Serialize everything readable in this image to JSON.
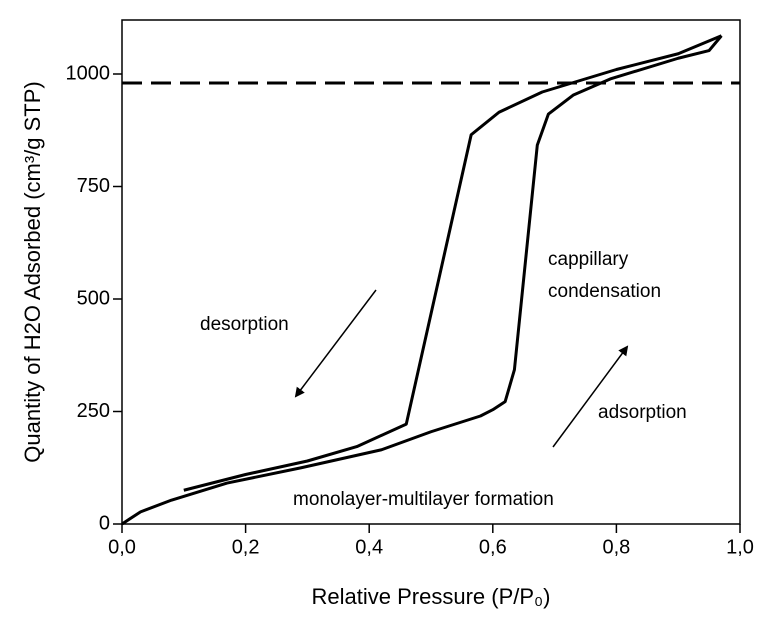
{
  "chart_data": {
    "type": "line",
    "x_label": "Relative Pressure (P/P₀)",
    "y_label": "Quantity of H2O Adsorbed (cm³/g STP)",
    "xlim": [
      0,
      1
    ],
    "ylim": [
      0,
      1120
    ],
    "xticks": [
      {
        "value": 0,
        "label": "0,0"
      },
      {
        "value": 0.2,
        "label": "0,2"
      },
      {
        "value": 0.4,
        "label": "0,4"
      },
      {
        "value": 0.6,
        "label": "0,6"
      },
      {
        "value": 0.8,
        "label": "0,8"
      },
      {
        "value": 1,
        "label": "1,0"
      }
    ],
    "yticks": [
      0,
      250,
      500,
      750,
      1000
    ],
    "hline": 980,
    "series": [
      {
        "color": "#000000",
        "x": [
          0,
          0.03,
          0.08,
          0.17,
          0.29,
          0.42,
          0.5,
          0.58,
          0.6,
          0.62,
          0.635,
          0.672,
          0.69,
          0.73,
          0.79,
          0.9,
          0.95,
          0.97
        ],
        "values": [
          0,
          27,
          53,
          91,
          125,
          165,
          205,
          240,
          254,
          272,
          343,
          842,
          911,
          953,
          989,
          1035,
          1052,
          1085
        ]
      },
      {
        "color": "#000000",
        "x": [
          0.97,
          0.9,
          0.8,
          0.68,
          0.61,
          0.565,
          0.46,
          0.38,
          0.3,
          0.2,
          0.1
        ],
        "values": [
          1085,
          1045,
          1010,
          960,
          915,
          865,
          222,
          172,
          140,
          110,
          75
        ]
      }
    ],
    "annotations": [
      "desorption",
      "cappillary",
      "condensation",
      "adsorption",
      "monolayer-multilayer formation"
    ]
  }
}
